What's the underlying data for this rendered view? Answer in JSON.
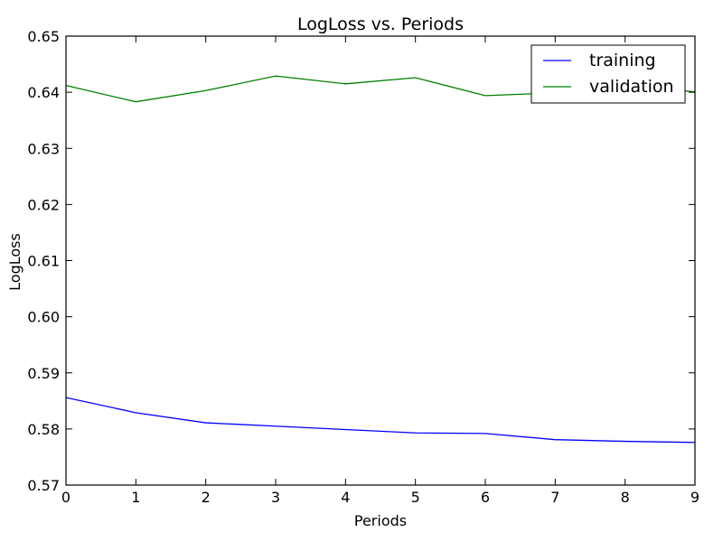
{
  "chart_data": {
    "type": "line",
    "title": "LogLoss vs. Periods",
    "xlabel": "Periods",
    "ylabel": "LogLoss",
    "xlim": [
      0,
      9
    ],
    "ylim": [
      0.57,
      0.65
    ],
    "x": [
      0,
      1,
      2,
      3,
      4,
      5,
      6,
      7,
      8,
      9
    ],
    "x_ticks": [
      "0",
      "1",
      "2",
      "3",
      "4",
      "5",
      "6",
      "7",
      "8",
      "9"
    ],
    "y_ticks": [
      "0.57",
      "0.58",
      "0.59",
      "0.60",
      "0.61",
      "0.62",
      "0.63",
      "0.64",
      "0.65"
    ],
    "grid": false,
    "legend_position": "upper right",
    "series": [
      {
        "name": "training",
        "color": "#0000ff",
        "values": [
          0.5856,
          0.5829,
          0.5811,
          0.5805,
          0.5799,
          0.5793,
          0.5792,
          0.5781,
          0.5778,
          0.5776
        ]
      },
      {
        "name": "validation",
        "color": "#008000",
        "values": [
          0.6412,
          0.6383,
          0.6403,
          0.6429,
          0.6415,
          0.6426,
          0.6394,
          0.6399,
          0.641,
          0.6401
        ]
      }
    ]
  }
}
